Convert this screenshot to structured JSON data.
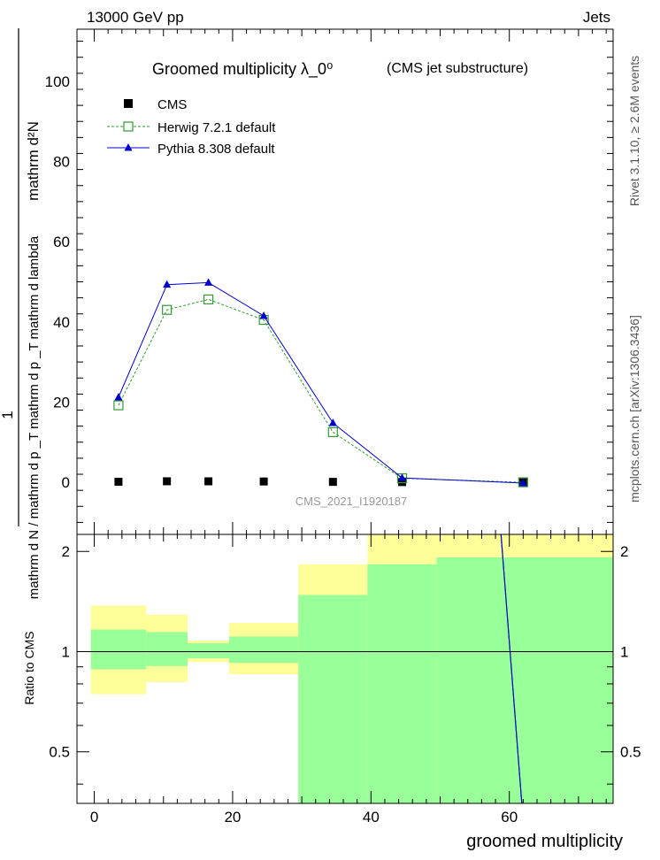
{
  "header": {
    "energy_label": "13000 GeV pp",
    "category_label": "Jets"
  },
  "side": {
    "rivet_label": "Rivet 3.1.10, ≥ 2.6M events",
    "mcplots_label": "mcplots.cern.ch [arXiv:1306.3436]"
  },
  "chart_data": {
    "type": "line",
    "title_main": "Groomed multiplicity  λ_0⁰",
    "title_sub": "(CMS jet substructure)",
    "analysis_label": "CMS_2021_I1920187",
    "ylabel_numerator": "1",
    "ylabel_denominator": "mathrm d N / mathrm d p _T mathrm d p _T mathrm d lambda",
    "ylabel_top": "mathrm d²N",
    "xlabel": "groomed multiplicity",
    "ratio_ylabel": "Ratio to CMS",
    "xlim": [
      -2.5,
      75
    ],
    "ylim": [
      -13,
      113
    ],
    "ratio_ylim": [
      0.35,
      2.25
    ],
    "x_ticks": [
      0,
      20,
      40,
      60
    ],
    "x_tick_labels": [
      "0",
      "20",
      "40",
      "60"
    ],
    "y_ticks": [
      0,
      20,
      40,
      60,
      80,
      100
    ],
    "y_tick_labels": [
      "0",
      "20",
      "40",
      "60",
      "80",
      "100"
    ],
    "ratio_ticks": [
      0.5,
      1,
      2
    ],
    "ratio_tick_labels": [
      "0.5",
      "1",
      "2"
    ],
    "legend_position": "top-left",
    "series": [
      {
        "name": "CMS",
        "marker": "square-filled",
        "color": "#000000",
        "x": [
          3.5,
          10.5,
          16.5,
          24.5,
          34.5,
          44.5,
          62.0
        ],
        "y": [
          0.12,
          0.25,
          0.24,
          0.2,
          0.1,
          0.05,
          0.0
        ]
      },
      {
        "name": "Herwig 7.2.1 default",
        "marker": "square-open",
        "color": "#339933",
        "dashed": true,
        "x": [
          3.5,
          10.5,
          16.5,
          24.5,
          34.5,
          44.5,
          62.0
        ],
        "y": [
          19.2,
          43.0,
          45.6,
          40.5,
          12.5,
          1.0,
          0.0
        ]
      },
      {
        "name": "Pythia 8.308 default",
        "marker": "triangle-filled",
        "color": "#0000cc",
        "dashed": false,
        "x": [
          3.5,
          10.5,
          16.5,
          24.5,
          34.5,
          44.5,
          62.0
        ],
        "y": [
          21.2,
          49.3,
          49.8,
          41.5,
          14.8,
          1.1,
          -0.2
        ]
      }
    ],
    "ratio_bins": [
      {
        "xlo": -0.5,
        "xhi": 7.5,
        "green": [
          0.885,
          1.165
        ],
        "yellow": [
          0.745,
          1.375
        ]
      },
      {
        "xlo": 7.5,
        "xhi": 13.5,
        "green": [
          0.905,
          1.145
        ],
        "yellow": [
          0.81,
          1.29
        ]
      },
      {
        "xlo": 13.5,
        "xhi": 19.5,
        "green": [
          0.955,
          1.06
        ],
        "yellow": [
          0.93,
          1.08
        ]
      },
      {
        "xlo": 19.5,
        "xhi": 29.5,
        "green": [
          0.925,
          1.11
        ],
        "yellow": [
          0.855,
          1.22
        ]
      },
      {
        "xlo": 29.5,
        "xhi": 39.5,
        "green": [
          0.35,
          1.48
        ],
        "yellow": [
          0.35,
          1.83
        ]
      },
      {
        "xlo": 39.5,
        "xhi": 49.5,
        "green": [
          0.35,
          1.83
        ],
        "yellow": [
          0.35,
          2.25
        ]
      },
      {
        "xlo": 49.5,
        "xhi": 75.0,
        "green": [
          0.35,
          1.92
        ],
        "yellow": [
          0.35,
          2.25
        ]
      }
    ],
    "ratio_lines": [
      {
        "name": "Herwig 7.2.1 default",
        "color": "#339933",
        "x": [
          58.8,
          61.8
        ],
        "y": [
          2.25,
          0.35
        ]
      },
      {
        "name": "Pythia 8.308 default",
        "color": "#0000cc",
        "x": [
          58.8,
          61.8
        ],
        "y": [
          2.25,
          0.35
        ]
      }
    ]
  }
}
